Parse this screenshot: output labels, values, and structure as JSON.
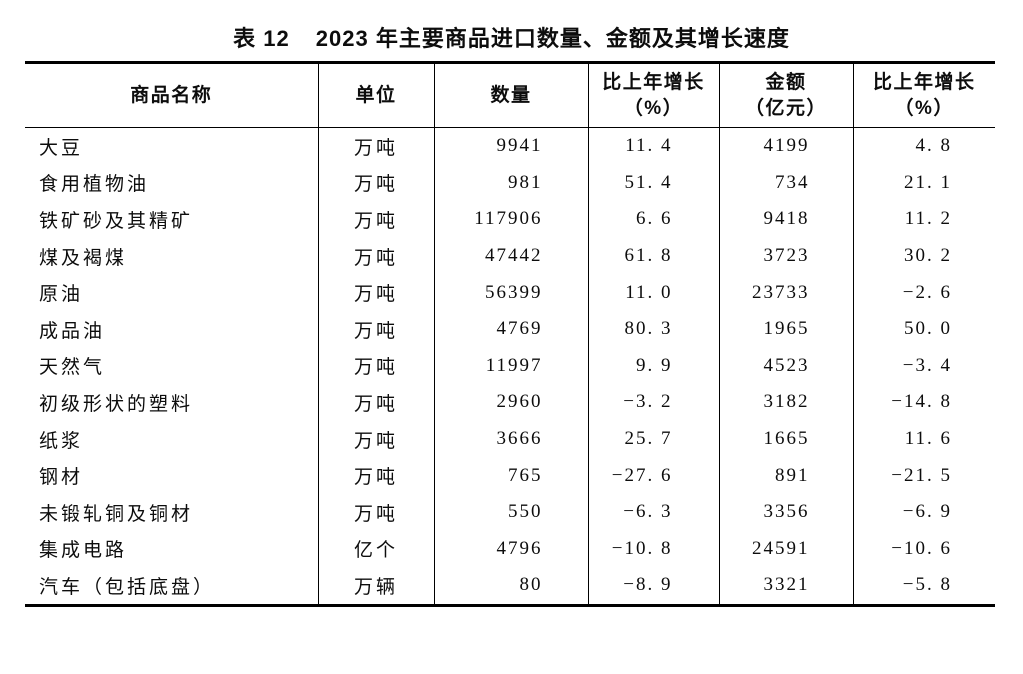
{
  "title": {
    "label": "表 12",
    "text": "2023 年主要商品进口数量、金额及其增长速度"
  },
  "colors": {
    "text": "#0d0d0d",
    "border": "#000000",
    "background": "#ffffff"
  },
  "table": {
    "columns": [
      {
        "key": "name",
        "label": "商品名称"
      },
      {
        "key": "unit",
        "label": "单位"
      },
      {
        "key": "quantity",
        "label": "数量"
      },
      {
        "key": "qty_growth",
        "label_line1": "比上年增长",
        "label_line2": "（%）"
      },
      {
        "key": "amount",
        "label_line1": "金额",
        "label_line2": "（亿元）"
      },
      {
        "key": "amt_growth",
        "label_line1": "比上年增长",
        "label_line2": "（%）"
      }
    ],
    "rows": [
      {
        "name": "大豆",
        "unit": "万吨",
        "quantity": "9941",
        "qty_growth": "11.4",
        "amount": "4199",
        "amt_growth": "4.8"
      },
      {
        "name": "食用植物油",
        "unit": "万吨",
        "quantity": "981",
        "qty_growth": "51.4",
        "amount": "734",
        "amt_growth": "21.1"
      },
      {
        "name": "铁矿砂及其精矿",
        "unit": "万吨",
        "quantity": "117906",
        "qty_growth": "6.6",
        "amount": "9418",
        "amt_growth": "11.2"
      },
      {
        "name": "煤及褐煤",
        "unit": "万吨",
        "quantity": "47442",
        "qty_growth": "61.8",
        "amount": "3723",
        "amt_growth": "30.2"
      },
      {
        "name": "原油",
        "unit": "万吨",
        "quantity": "56399",
        "qty_growth": "11.0",
        "amount": "23733",
        "amt_growth": "-2.6"
      },
      {
        "name": "成品油",
        "unit": "万吨",
        "quantity": "4769",
        "qty_growth": "80.3",
        "amount": "1965",
        "amt_growth": "50.0"
      },
      {
        "name": "天然气",
        "unit": "万吨",
        "quantity": "11997",
        "qty_growth": "9.9",
        "amount": "4523",
        "amt_growth": "-3.4"
      },
      {
        "name": "初级形状的塑料",
        "unit": "万吨",
        "quantity": "2960",
        "qty_growth": "-3.2",
        "amount": "3182",
        "amt_growth": "-14.8"
      },
      {
        "name": "纸浆",
        "unit": "万吨",
        "quantity": "3666",
        "qty_growth": "25.7",
        "amount": "1665",
        "amt_growth": "11.6"
      },
      {
        "name": "钢材",
        "unit": "万吨",
        "quantity": "765",
        "qty_growth": "-27.6",
        "amount": "891",
        "amt_growth": "-21.5"
      },
      {
        "name": "未锻轧铜及铜材",
        "unit": "万吨",
        "quantity": "550",
        "qty_growth": "-6.3",
        "amount": "3356",
        "amt_growth": "-6.9"
      },
      {
        "name": "集成电路",
        "unit": "亿个",
        "quantity": "4796",
        "qty_growth": "-10.8",
        "amount": "24591",
        "amt_growth": "-10.6"
      },
      {
        "name": "汽车（包括底盘）",
        "unit": "万辆",
        "quantity": "80",
        "qty_growth": "-8.9",
        "amount": "3321",
        "amt_growth": "-5.8"
      }
    ]
  }
}
